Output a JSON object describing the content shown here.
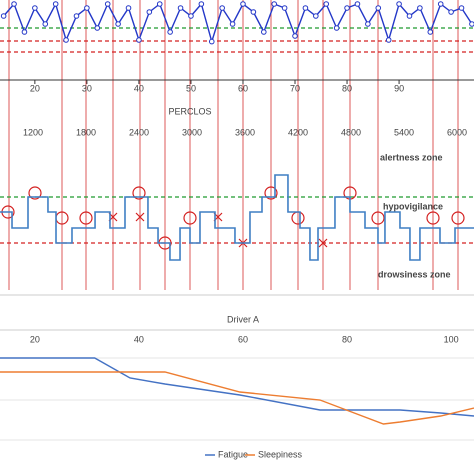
{
  "chart_data": [
    {
      "type": "line",
      "color": "#2438c8",
      "markers": true,
      "x": [
        14,
        16,
        18,
        20,
        22,
        24,
        26,
        28,
        30,
        32,
        34,
        36,
        38,
        40,
        42,
        44,
        46,
        48,
        50,
        52,
        54,
        56,
        58,
        60,
        62,
        64,
        66,
        68,
        70,
        72,
        74,
        76,
        78,
        80,
        82,
        84,
        86,
        88,
        90,
        92,
        94,
        96,
        98,
        100,
        102,
        104
      ],
      "values": [
        8,
        9.5,
        6,
        9,
        7,
        9.5,
        5,
        8,
        9,
        6.5,
        9.5,
        7,
        9,
        5,
        8.5,
        9.5,
        6,
        9,
        8,
        9.5,
        4.8,
        9,
        7,
        9.5,
        8.5,
        6,
        9.5,
        9,
        5.5,
        9,
        8,
        9.5,
        6.5,
        9,
        9.5,
        7,
        9,
        5,
        9.5,
        8,
        9,
        6,
        9.5,
        8.5,
        9,
        7
      ],
      "xlim": [
        13.3,
        104.4
      ],
      "xticks": [
        20,
        30,
        40,
        50,
        60,
        70,
        80,
        90
      ],
      "ylim": [
        0,
        10
      ]
    },
    {
      "type": "line",
      "step": true,
      "color": "#3f7fc4",
      "x_label": "PERCLOS",
      "x": [
        826,
        962,
        1143,
        1369,
        1460,
        1641,
        1902,
        2071,
        2241,
        2501,
        2615,
        2750,
        2864,
        2977,
        3090,
        3260,
        3486,
        3656,
        3792,
        3939,
        4086,
        4222,
        4335,
        4426,
        4618,
        4788,
        4958,
        5105,
        5184,
        5354,
        5467,
        5580,
        5807,
        5977,
        6192
      ],
      "values": [
        78,
        62,
        93,
        78,
        47,
        62,
        78,
        62,
        93,
        62,
        47,
        30,
        62,
        47,
        78,
        62,
        47,
        78,
        93,
        115,
        78,
        62,
        30,
        62,
        93,
        78,
        62,
        47,
        78,
        62,
        30,
        62,
        47,
        62,
        62
      ],
      "xlim": [
        826,
        6192
      ],
      "xticks": [
        1200,
        1800,
        2400,
        3000,
        3600,
        4200,
        4800,
        5400,
        6000
      ],
      "ylim": [
        0,
        150
      ],
      "annotations": [
        {
          "text": "alertness zone",
          "color": "#1e9b2e"
        },
        {
          "text": "hypovigilance",
          "color": "#e8a400"
        },
        {
          "text": "drowsiness zone",
          "color": "#d42020"
        }
      ]
    },
    {
      "type": "line",
      "title": "Driver A",
      "xlim": [
        13.3,
        104.4
      ],
      "xticks": [
        20,
        40,
        60,
        80,
        100
      ],
      "ylim": [
        0,
        10
      ],
      "x": [
        13.3,
        31.5,
        38.3,
        45,
        59.4,
        74.8,
        87,
        90.2,
        98,
        104.4
      ],
      "series": [
        {
          "name": "Fatigue",
          "color": "#4472c4",
          "values": [
            9.2,
            9.2,
            7.2,
            6.6,
            5.5,
            4.0,
            4.0,
            4.0,
            3.7,
            3.4
          ]
        },
        {
          "name": "Sleepiness",
          "color": "#ed7d31",
          "values": [
            7.8,
            7.8,
            7.8,
            7.8,
            5.8,
            5.0,
            2.6,
            2.8,
            3.4,
            4.2
          ]
        }
      ]
    }
  ]
}
